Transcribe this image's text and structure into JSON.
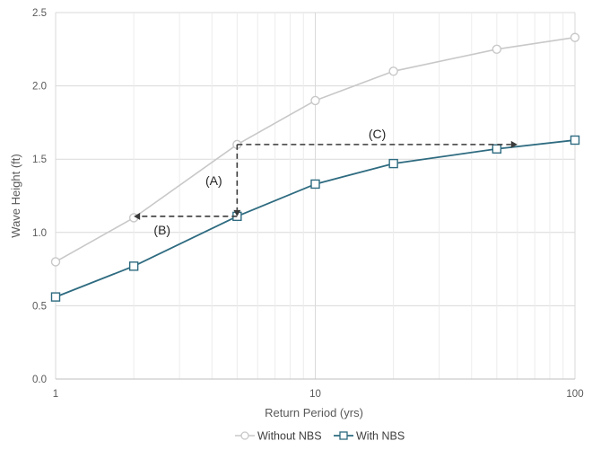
{
  "chart_data": {
    "type": "line",
    "title": "",
    "xlabel": "Return Period (yrs)",
    "ylabel": "Wave Height (ft)",
    "x_scale": "log",
    "xlim": [
      1,
      100
    ],
    "ylim": [
      0,
      2.5
    ],
    "x_ticks": [
      {
        "value": 1,
        "label": "1"
      },
      {
        "value": 10,
        "label": "10"
      },
      {
        "value": 100,
        "label": "100"
      }
    ],
    "y_ticks": [
      {
        "value": 0,
        "label": "0.0"
      },
      {
        "value": 0.5,
        "label": "0.5"
      },
      {
        "value": 1.0,
        "label": "1.0"
      },
      {
        "value": 1.5,
        "label": "1.5"
      },
      {
        "value": 2.0,
        "label": "2.0"
      },
      {
        "value": 2.5,
        "label": "2.5"
      }
    ],
    "grid": true,
    "legend_position": "bottom",
    "x": [
      1,
      2,
      5,
      10,
      20,
      50,
      100
    ],
    "series": [
      {
        "name": "Without NBS",
        "values": [
          0.8,
          1.1,
          1.6,
          1.9,
          2.1,
          2.25,
          2.33
        ],
        "color": "#c8c8c8",
        "marker": "circle"
      },
      {
        "name": "With NBS",
        "values": [
          0.56,
          0.77,
          1.11,
          1.33,
          1.47,
          1.57,
          1.63
        ],
        "color": "#2e6b80",
        "marker": "square"
      }
    ],
    "annotations": [
      {
        "label": "(A)",
        "from": {
          "x": 5,
          "y": 1.6
        },
        "to": {
          "x": 5,
          "y": 1.11
        }
      },
      {
        "label": "(B)",
        "from": {
          "x": 5,
          "y": 1.11
        },
        "to": {
          "x": 2,
          "y": 1.11
        }
      },
      {
        "label": "(C)",
        "from": {
          "x": 5,
          "y": 1.6
        },
        "to": {
          "x": 60,
          "y": 1.6
        }
      }
    ],
    "colors": {
      "grid": "#d9d9d9",
      "axis": "#bfbfbf",
      "arrow": "#3a3a3a"
    }
  }
}
